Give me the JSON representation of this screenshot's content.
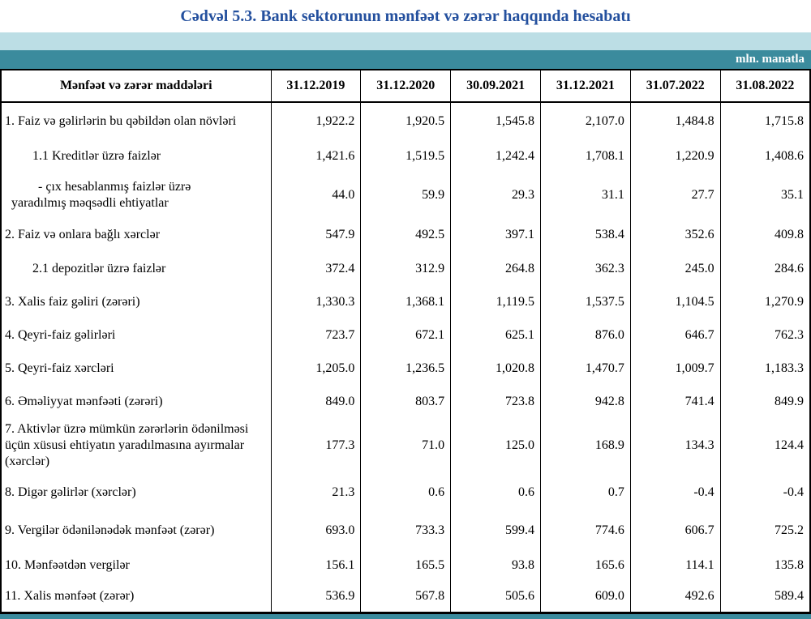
{
  "title": "Cədvəl 5.3. Bank sektorunun mənfəət və zərər haqqında hesabatı",
  "unit_label": "mln. manatla",
  "colors": {
    "title_blue": "#24509e",
    "band_light": "#bcdee5",
    "band_teal": "#3b8b9d",
    "border": "#000000"
  },
  "table": {
    "header": [
      "Mənfəət və zərər maddələri",
      "31.12.2019",
      "31.12.2020",
      "30.09.2021",
      "31.12.2021",
      "31.07.2022",
      "31.08.2022"
    ],
    "rows": [
      {
        "label": "1. Faiz və gəlirlərin bu qəbildən olan növləri",
        "indent": 0,
        "values": [
          "1,922.2",
          "1,920.5",
          "1,545.8",
          "2,107.0",
          "1,484.8",
          "1,715.8"
        ]
      },
      {
        "label": "1.1 Kreditlər üzrə faizlər",
        "indent": 1,
        "values": [
          "1,421.6",
          "1,519.5",
          "1,242.4",
          "1,708.1",
          "1,220.9",
          "1,408.6"
        ]
      },
      {
        "label": "-  çıx hesablanmış faizlər üzrə",
        "label2": "yaradılmış məqsədli ehtiyatlar",
        "indent": 2,
        "values": [
          "44.0",
          "59.9",
          "29.3",
          "31.1",
          "27.7",
          "35.1"
        ]
      },
      {
        "label": "2. Faiz və onlara bağlı xərclər",
        "indent": 0,
        "values": [
          "547.9",
          "492.5",
          "397.1",
          "538.4",
          "352.6",
          "409.8"
        ]
      },
      {
        "label": "2.1 depozitlər üzrə faizlər",
        "indent": 1,
        "values": [
          "372.4",
          "312.9",
          "264.8",
          "362.3",
          "245.0",
          "284.6"
        ]
      },
      {
        "label": "3. Xalis faiz gəliri (zərəri)",
        "indent": 0,
        "values": [
          "1,330.3",
          "1,368.1",
          "1,119.5",
          "1,537.5",
          "1,104.5",
          "1,270.9"
        ]
      },
      {
        "label": "4. Qeyri-faiz gəlirləri",
        "indent": 0,
        "values": [
          "723.7",
          "672.1",
          "625.1",
          "876.0",
          "646.7",
          "762.3"
        ]
      },
      {
        "label": "5. Qeyri-faiz xərcləri",
        "indent": 0,
        "values": [
          "1,205.0",
          "1,236.5",
          "1,020.8",
          "1,470.7",
          "1,009.7",
          "1,183.3"
        ]
      },
      {
        "label": "6. Əməliyyat mənfəəti (zərəri)",
        "indent": 0,
        "values": [
          "849.0",
          "803.7",
          "723.8",
          "942.8",
          "741.4",
          "849.9"
        ]
      },
      {
        "label": "7. Aktivlər üzrə mümkün zərərlərin ödənilməsi üçün xüsusi ehtiyatın yaradılmasına ayırmalar (xərclər)",
        "indent": 0,
        "values": [
          "177.3",
          "71.0",
          "125.0",
          "168.9",
          "134.3",
          "124.4"
        ]
      },
      {
        "label": "8. Digər gəlirlər (xərclər)",
        "indent": 0,
        "values": [
          "21.3",
          "0.6",
          "0.6",
          "0.7",
          "-0.4",
          "-0.4"
        ]
      },
      {
        "label": "9. Vergilər ödənilənədək mənfəət (zərər)",
        "indent": 0,
        "values": [
          "693.0",
          "733.3",
          "599.4",
          "774.6",
          "606.7",
          "725.2"
        ]
      },
      {
        "label": "10. Mənfəətdən vergilər",
        "indent": 0,
        "values": [
          "156.1",
          "165.5",
          "93.8",
          "165.6",
          "114.1",
          "135.8"
        ]
      },
      {
        "label": "11. Xalis mənfəət (zərər)",
        "indent": 0,
        "values": [
          "536.9",
          "567.8",
          "505.6",
          "609.0",
          "492.6",
          "589.4"
        ]
      }
    ]
  }
}
